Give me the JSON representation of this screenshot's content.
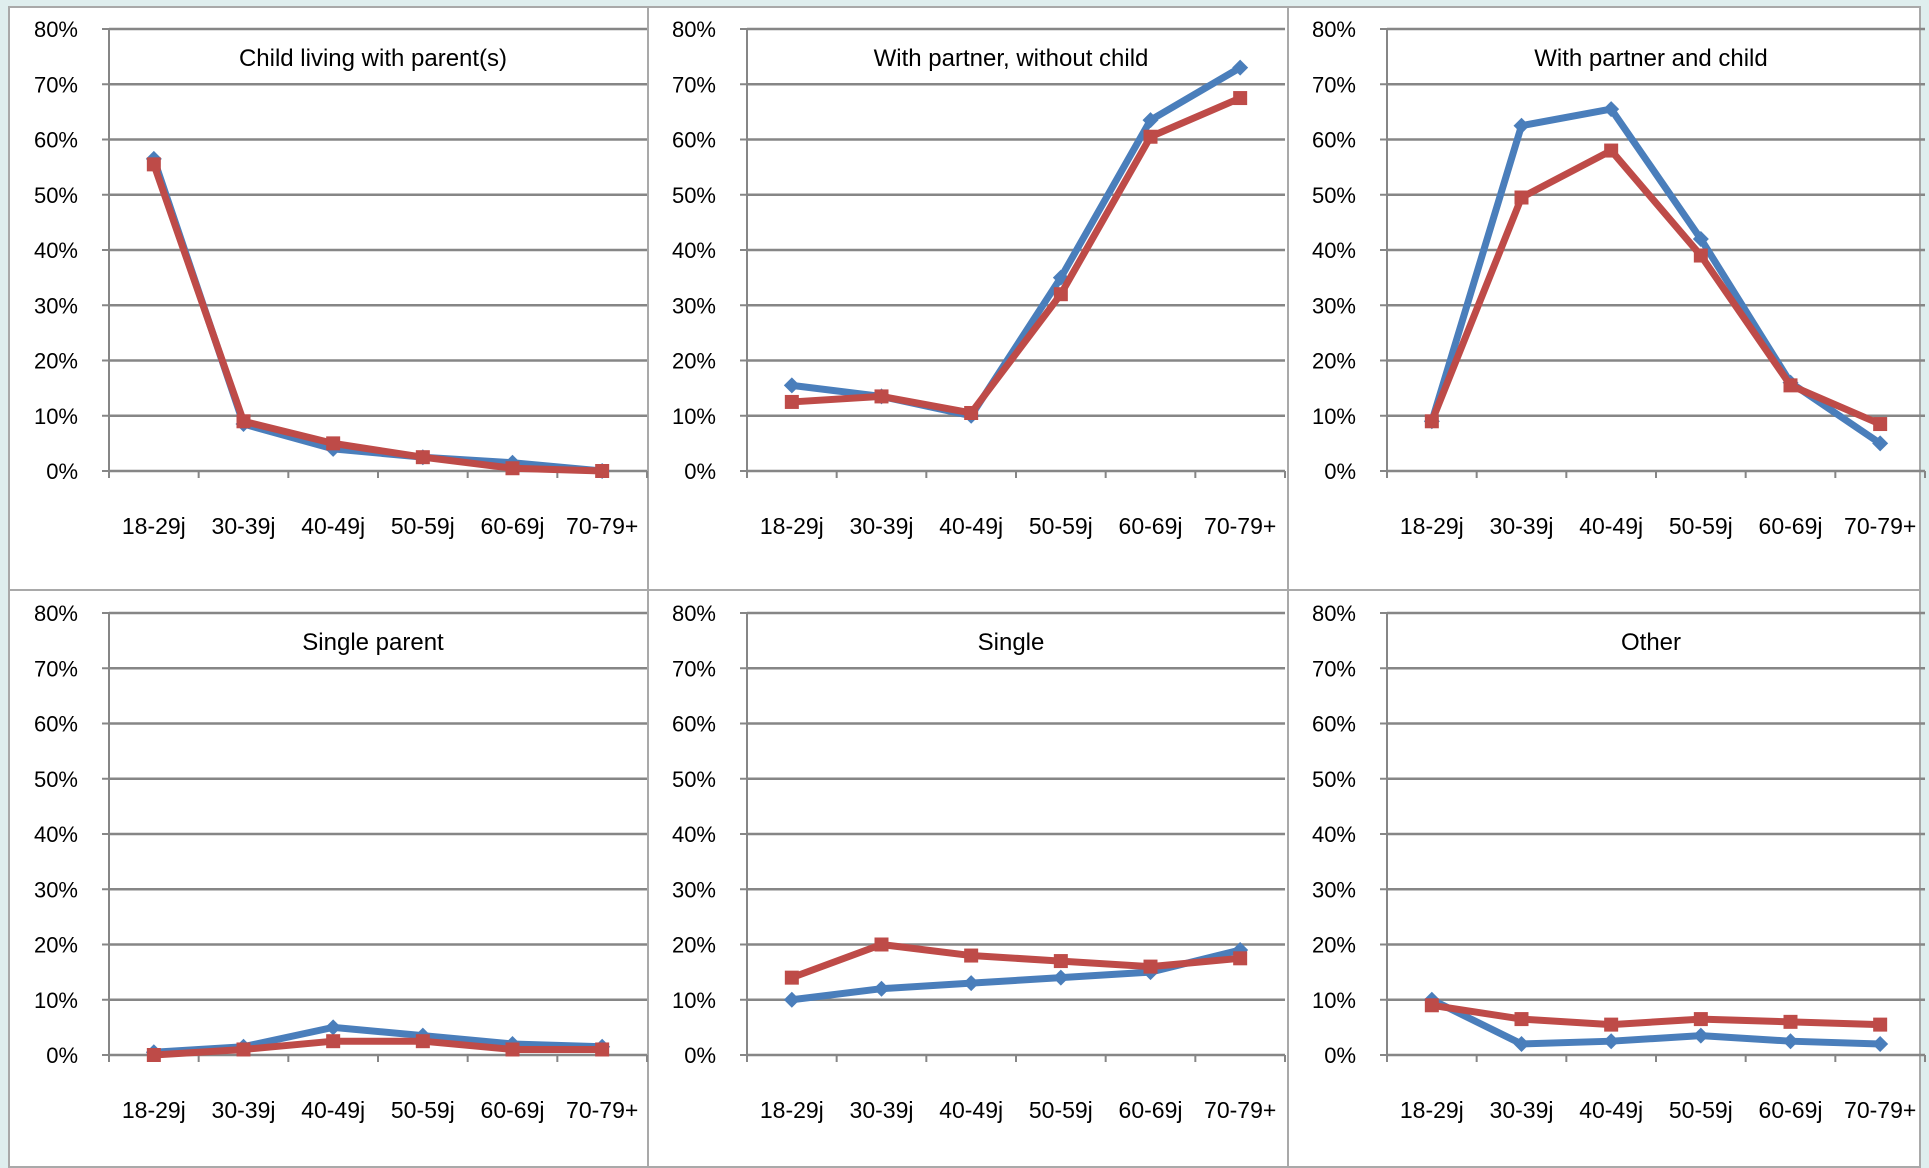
{
  "colors": {
    "series_blue": "#4a7ebb",
    "series_red": "#be4b48",
    "gridline": "#868686",
    "panel_divider": "#a9a9a9"
  },
  "chart_data": [
    {
      "type": "line",
      "title": "Child living with parent(s)",
      "categories": [
        "18-29j",
        "30-39j",
        "40-49j",
        "50-59j",
        "60-69j",
        "70-79+"
      ],
      "y_ticks": [
        "0%",
        "10%",
        "20%",
        "30%",
        "40%",
        "50%",
        "60%",
        "70%",
        "80%"
      ],
      "ylim": [
        0,
        80
      ],
      "grid": true,
      "series": [
        {
          "color": "#4a7ebb",
          "marker": "diamond",
          "values": [
            56.5,
            8.5,
            4,
            2.5,
            1.5,
            0
          ]
        },
        {
          "color": "#be4b48",
          "marker": "square",
          "values": [
            55.5,
            9,
            5,
            2.5,
            0.5,
            0
          ]
        }
      ]
    },
    {
      "type": "line",
      "title": "With partner, without child",
      "categories": [
        "18-29j",
        "30-39j",
        "40-49j",
        "50-59j",
        "60-69j",
        "70-79+"
      ],
      "y_ticks": [
        "0%",
        "10%",
        "20%",
        "30%",
        "40%",
        "50%",
        "60%",
        "70%",
        "80%"
      ],
      "ylim": [
        0,
        80
      ],
      "grid": true,
      "series": [
        {
          "color": "#4a7ebb",
          "marker": "diamond",
          "values": [
            15.5,
            13.5,
            10,
            35,
            63.5,
            73
          ]
        },
        {
          "color": "#be4b48",
          "marker": "square",
          "values": [
            12.5,
            13.5,
            10.5,
            32,
            60.5,
            67.5
          ]
        }
      ]
    },
    {
      "type": "line",
      "title": "With partner and child",
      "categories": [
        "18-29j",
        "30-39j",
        "40-49j",
        "50-59j",
        "60-69j",
        "70-79+"
      ],
      "y_ticks": [
        "0%",
        "10%",
        "20%",
        "30%",
        "40%",
        "50%",
        "60%",
        "70%",
        "80%"
      ],
      "ylim": [
        0,
        80
      ],
      "grid": true,
      "series": [
        {
          "color": "#4a7ebb",
          "marker": "diamond",
          "values": [
            9,
            62.5,
            65.5,
            42,
            16,
            5
          ]
        },
        {
          "color": "#be4b48",
          "marker": "square",
          "values": [
            9,
            49.5,
            58,
            39,
            15.5,
            8.5
          ]
        }
      ]
    },
    {
      "type": "line",
      "title": "Single parent",
      "categories": [
        "18-29j",
        "30-39j",
        "40-49j",
        "50-59j",
        "60-69j",
        "70-79+"
      ],
      "y_ticks": [
        "0%",
        "10%",
        "20%",
        "30%",
        "40%",
        "50%",
        "60%",
        "70%",
        "80%"
      ],
      "ylim": [
        0,
        80
      ],
      "grid": true,
      "series": [
        {
          "color": "#4a7ebb",
          "marker": "diamond",
          "values": [
            0.5,
            1.5,
            5,
            3.5,
            2,
            1.5
          ]
        },
        {
          "color": "#be4b48",
          "marker": "square",
          "values": [
            0,
            1,
            2.5,
            2.5,
            1,
            1
          ]
        }
      ]
    },
    {
      "type": "line",
      "title": "Single",
      "categories": [
        "18-29j",
        "30-39j",
        "40-49j",
        "50-59j",
        "60-69j",
        "70-79+"
      ],
      "y_ticks": [
        "0%",
        "10%",
        "20%",
        "30%",
        "40%",
        "50%",
        "60%",
        "70%",
        "80%"
      ],
      "ylim": [
        0,
        80
      ],
      "grid": true,
      "series": [
        {
          "color": "#4a7ebb",
          "marker": "diamond",
          "values": [
            10,
            12,
            13,
            14,
            15,
            19
          ]
        },
        {
          "color": "#be4b48",
          "marker": "square",
          "values": [
            14,
            20,
            18,
            17,
            16,
            17.5
          ]
        }
      ]
    },
    {
      "type": "line",
      "title": "Other",
      "categories": [
        "18-29j",
        "30-39j",
        "40-49j",
        "50-59j",
        "60-69j",
        "70-79+"
      ],
      "y_ticks": [
        "0%",
        "10%",
        "20%",
        "30%",
        "40%",
        "50%",
        "60%",
        "70%",
        "80%"
      ],
      "ylim": [
        0,
        80
      ],
      "grid": true,
      "series": [
        {
          "color": "#4a7ebb",
          "marker": "diamond",
          "values": [
            10,
            2,
            2.5,
            3.5,
            2.5,
            2
          ]
        },
        {
          "color": "#be4b48",
          "marker": "square",
          "values": [
            9,
            6.5,
            5.5,
            6.5,
            6,
            5.5
          ]
        }
      ]
    }
  ]
}
